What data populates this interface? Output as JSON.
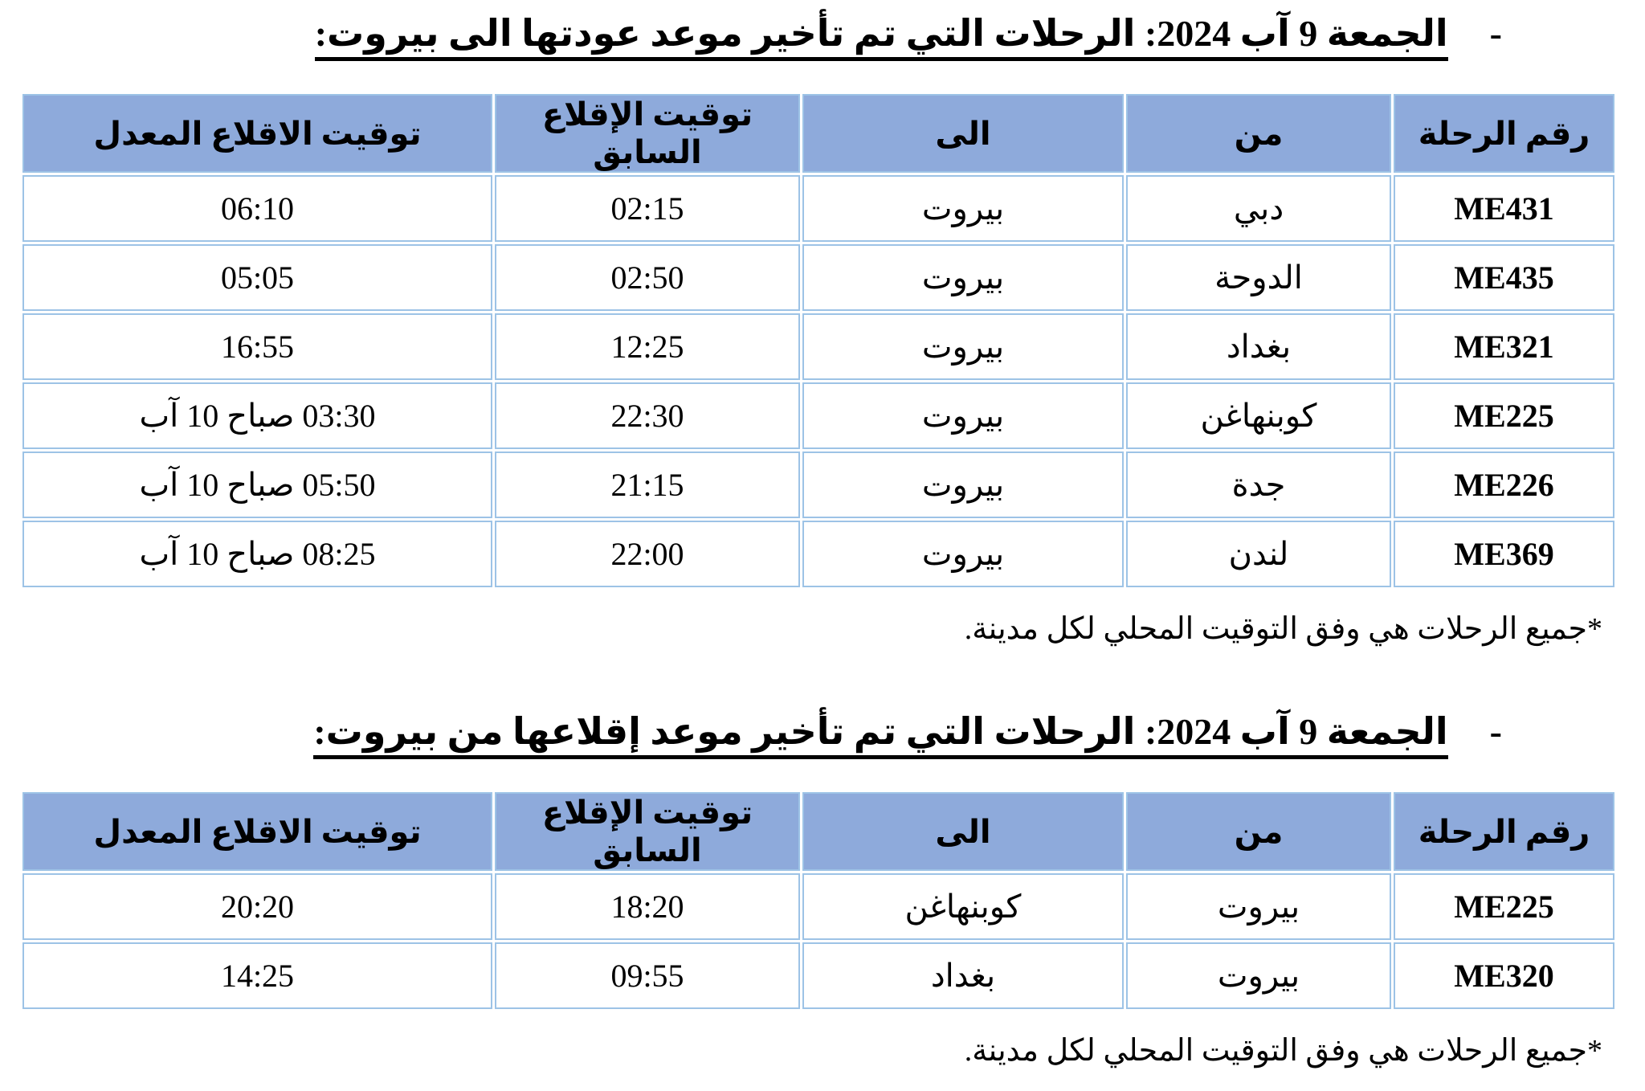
{
  "colors": {
    "header_fill": "#8EAADB",
    "table_border": "#9DC3E6",
    "text": "#000000",
    "page_bg": "#FFFFFF"
  },
  "section1": {
    "bullet": "-",
    "title": "الجمعة 9 آب 2024: الرحلات التي تم تأخير موعد عودتها الى بيروت:",
    "table": {
      "headers": [
        "رقم الرحلة",
        "من",
        "الى",
        "توقيت الإقلاع السابق",
        "توقيت الاقلاع المعدل"
      ],
      "rows": [
        [
          "ME431",
          "دبي",
          "بيروت",
          "02:15",
          "06:10"
        ],
        [
          "ME435",
          "الدوحة",
          "بيروت",
          "02:50",
          "05:05"
        ],
        [
          "ME321",
          "بغداد",
          "بيروت",
          "12:25",
          "16:55"
        ],
        [
          "ME225",
          "كوبنهاغن",
          "بيروت",
          "22:30",
          "03:30 صباح 10 آب"
        ],
        [
          "ME226",
          "جدة",
          "بيروت",
          "21:15",
          "05:50 صباح 10 آب"
        ],
        [
          "ME369",
          "لندن",
          "بيروت",
          "22:00",
          "08:25 صباح 10 آب"
        ]
      ]
    },
    "footnote": "*جميع الرحلات هي وفق التوقيت المحلي لكل مدينة."
  },
  "section2": {
    "bullet": "-",
    "title": "الجمعة 9 آب 2024: الرحلات التي تم تأخير موعد إقلاعها من بيروت:",
    "table": {
      "headers": [
        "رقم الرحلة",
        "من",
        "الى",
        "توقيت الإقلاع السابق",
        "توقيت الاقلاع المعدل"
      ],
      "rows": [
        [
          "ME225",
          "بيروت",
          "كوبنهاغن",
          "18:20",
          "20:20"
        ],
        [
          "ME320",
          "بيروت",
          "بغداد",
          "09:55",
          "14:25"
        ]
      ]
    },
    "footnote": "*جميع الرحلات هي وفق التوقيت المحلي لكل مدينة."
  }
}
